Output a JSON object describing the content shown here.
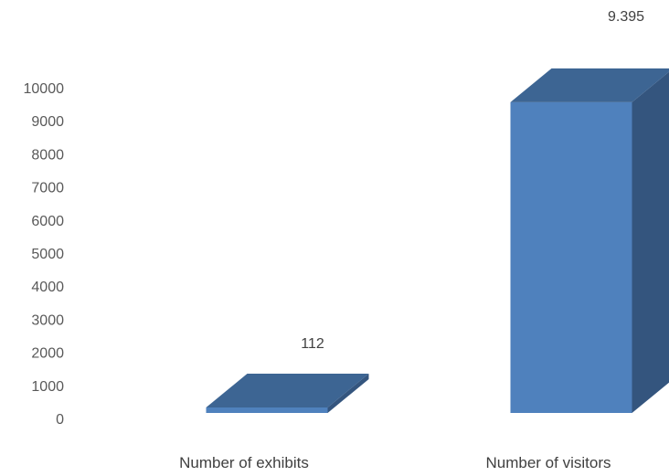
{
  "chart_data": {
    "type": "bar",
    "style": "3d-column",
    "categories": [
      "Number of exhibits",
      "Number of visitors"
    ],
    "values": [
      112,
      9395
    ],
    "data_labels": [
      "112",
      "9.395"
    ],
    "yticks": [
      0,
      1000,
      2000,
      3000,
      4000,
      5000,
      6000,
      7000,
      8000,
      9000,
      10000
    ],
    "ylim": [
      0,
      10000
    ],
    "grid": false,
    "legend": "none",
    "title": "",
    "xlabel": "",
    "ylabel": ""
  },
  "colors": {
    "bar_front": "#4f81bd",
    "bar_top": "#3d6593",
    "bar_side": "#34557e",
    "tick_text": "#595959",
    "label_text": "#404040"
  }
}
